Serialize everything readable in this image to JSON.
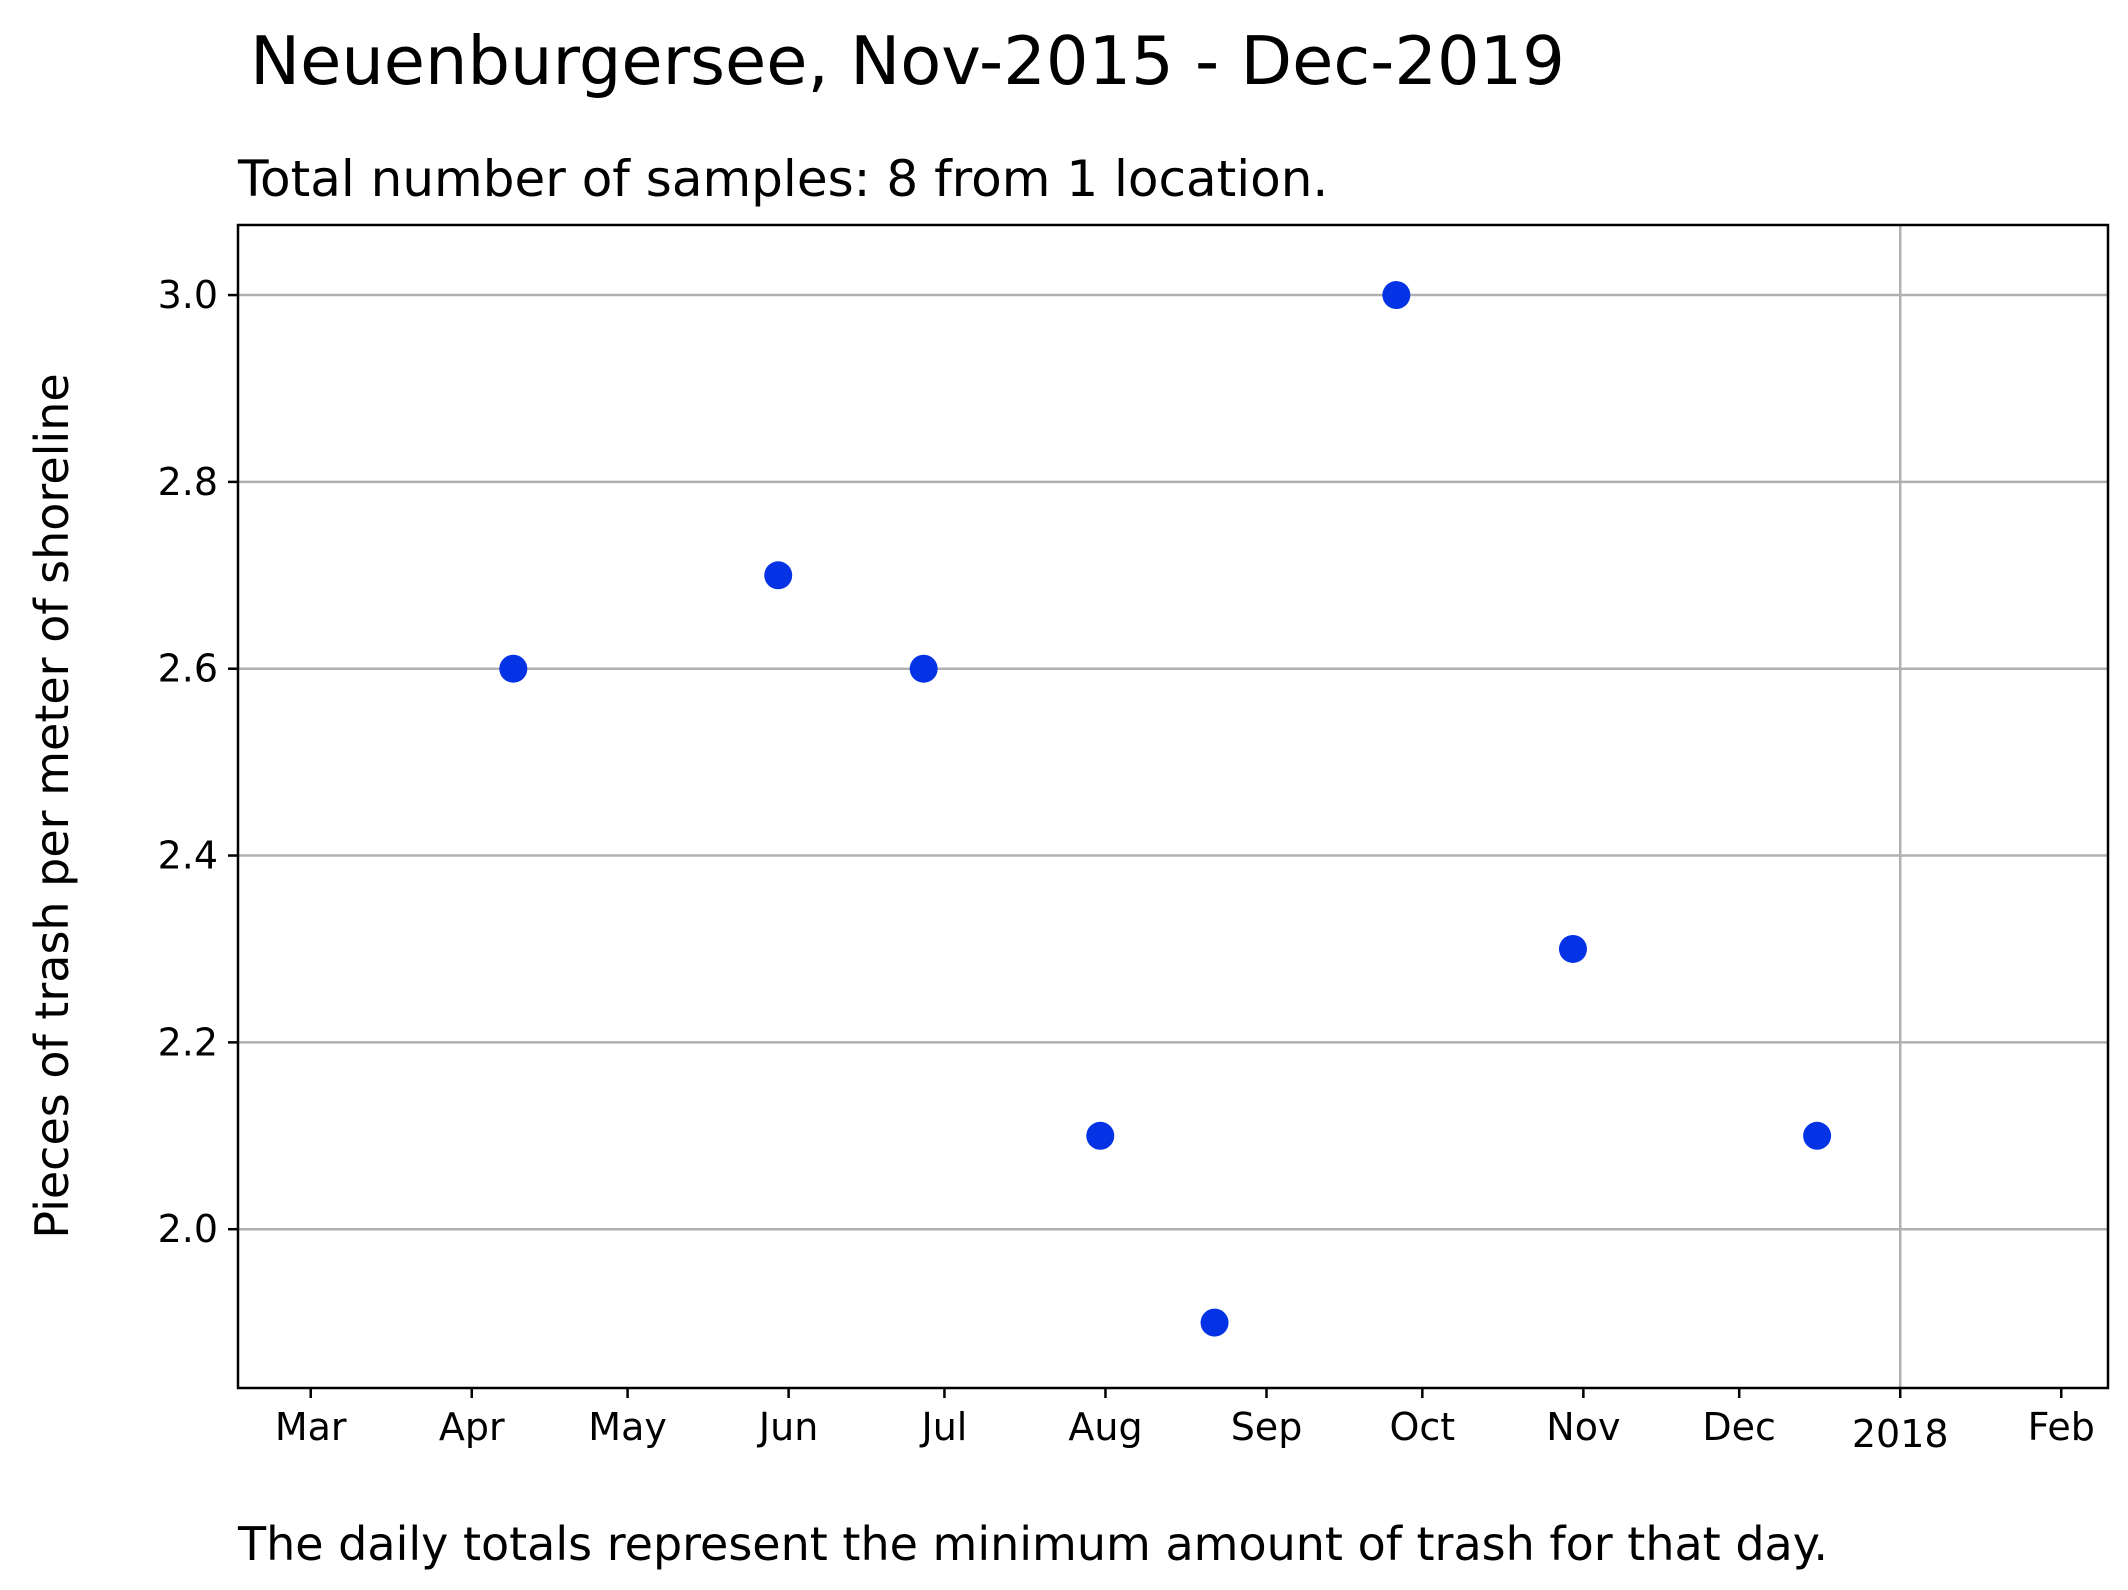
{
  "chart_data": {
    "type": "scatter",
    "title": "Neuenburgersee, Nov-2015 - Dec-2019",
    "subtitle": "Total number of samples: 8 from 1 location.",
    "caption": "The daily totals represent the minimum amount of trash for that day.",
    "xlabel": "",
    "ylabel": "Pieces of trash per meter of shoreline",
    "xlim": [
      "2017-02-15",
      "2018-02-10"
    ],
    "ylim": [
      1.83,
      3.075
    ],
    "grid": true,
    "marker_color": "#0433e6",
    "x_ticks": [
      {
        "date": "2017-03-01",
        "label": "Mar"
      },
      {
        "date": "2017-04-01",
        "label": "Apr"
      },
      {
        "date": "2017-05-01",
        "label": "May"
      },
      {
        "date": "2017-06-01",
        "label": "Jun"
      },
      {
        "date": "2017-07-01",
        "label": "Jul"
      },
      {
        "date": "2017-08-01",
        "label": "Aug"
      },
      {
        "date": "2017-09-01",
        "label": "Sep"
      },
      {
        "date": "2017-10-01",
        "label": "Oct"
      },
      {
        "date": "2017-11-01",
        "label": "Nov"
      },
      {
        "date": "2017-12-01",
        "label": "Dec"
      },
      {
        "date": "2018-01-01",
        "label": "2018"
      },
      {
        "date": "2018-02-01",
        "label": "Feb"
      }
    ],
    "y_ticks": [
      {
        "value": 2.0,
        "label": "2.0"
      },
      {
        "value": 2.2,
        "label": "2.2"
      },
      {
        "value": 2.4,
        "label": "2.4"
      },
      {
        "value": 2.6,
        "label": "2.6"
      },
      {
        "value": 2.8,
        "label": "2.8"
      },
      {
        "value": 3.0,
        "label": "3.0"
      }
    ],
    "points": [
      {
        "x": "2017-04-09",
        "y": 2.6
      },
      {
        "x": "2017-05-30",
        "y": 2.7
      },
      {
        "x": "2017-06-27",
        "y": 2.6
      },
      {
        "x": "2017-07-31",
        "y": 2.1
      },
      {
        "x": "2017-08-22",
        "y": 1.9
      },
      {
        "x": "2017-09-26",
        "y": 3.0
      },
      {
        "x": "2017-10-30",
        "y": 2.3
      },
      {
        "x": "2017-12-16",
        "y": 2.1
      }
    ]
  }
}
